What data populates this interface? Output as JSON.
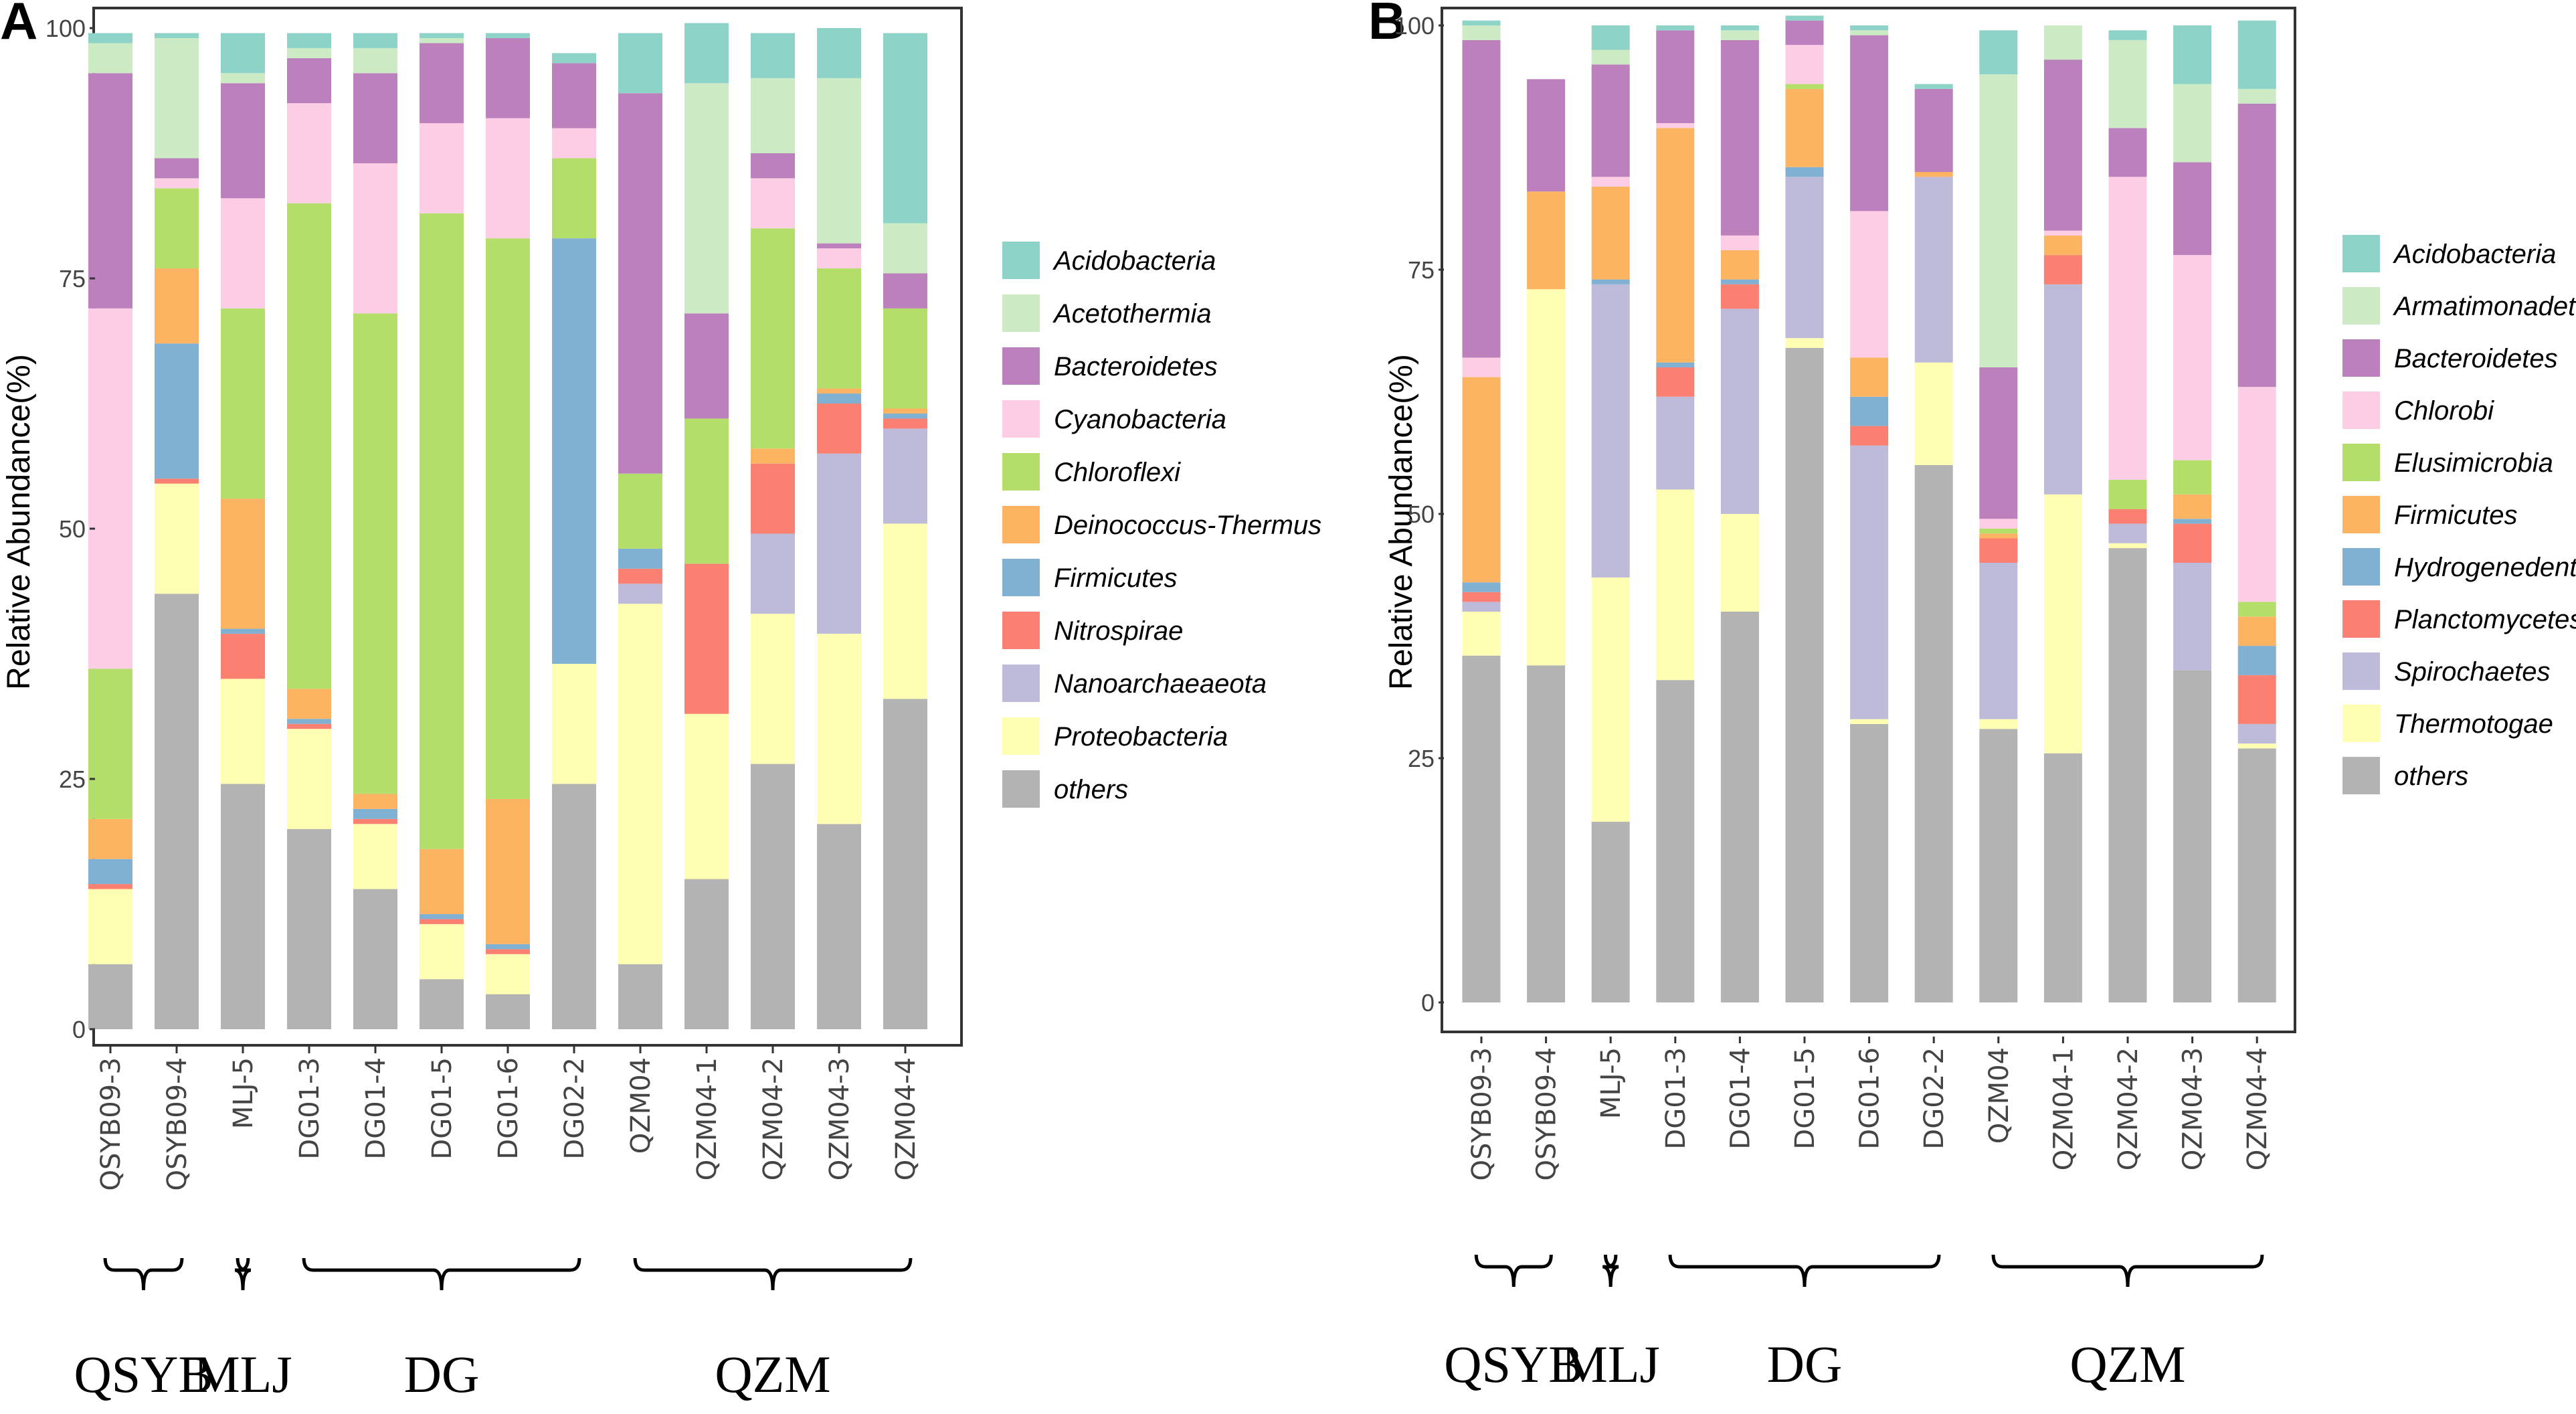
{
  "chart_data": [
    {
      "panel": "A",
      "type": "bar",
      "stacked": true,
      "ylabel": "Relative Abundance(%)",
      "ylim": [
        0,
        100
      ],
      "yticks": [
        0,
        25,
        50,
        75,
        100
      ],
      "categories": [
        "QSYB09-3",
        "QSYB09-4",
        "MLJ-5",
        "DG01-3",
        "DG01-4",
        "DG01-5",
        "DG01-6",
        "DG02-2",
        "QZM04",
        "QZM04-1",
        "QZM04-2",
        "QZM04-3",
        "QZM04-4"
      ],
      "groups": [
        {
          "label": "QSYB",
          "from": 0,
          "to": 1
        },
        {
          "label": "MLJ",
          "from": 2,
          "to": 2
        },
        {
          "label": "DG",
          "from": 3,
          "to": 7
        },
        {
          "label": "QZM",
          "from": 8,
          "to": 12
        }
      ],
      "legend": [
        "Acidobacteria",
        "Acetothermia",
        "Bacteroidetes",
        "Cyanobacteria",
        "Chloroflexi",
        "Deinococcus-Thermus",
        "Firmicutes",
        "Nitrospirae",
        "Nanoarchaeaeota",
        "Proteobacteria",
        "others"
      ],
      "series": [
        {
          "name": "others",
          "color": "#b3b3b3",
          "values": [
            6.5,
            43.5,
            24.5,
            20,
            14,
            5,
            3.5,
            24.5,
            6.5,
            15,
            26.5,
            20.5,
            33
          ]
        },
        {
          "name": "Proteobacteria",
          "color": "#ffffb3",
          "values": [
            7.5,
            11,
            10.5,
            10,
            6.5,
            5.5,
            4,
            12,
            36,
            16.5,
            15,
            19,
            17.5
          ]
        },
        {
          "name": "Nanoarchaeaeota",
          "color": "#bebada",
          "values": [
            0,
            0,
            0,
            0,
            0,
            0,
            0,
            0,
            2,
            0,
            8,
            18,
            9.5
          ]
        },
        {
          "name": "Nitrospirae",
          "color": "#fb8072",
          "values": [
            0.5,
            0.5,
            4.5,
            0.5,
            0.5,
            0.5,
            0.5,
            0,
            1.5,
            15,
            7,
            5,
            1
          ]
        },
        {
          "name": "Firmicutes",
          "color": "#80b1d3",
          "values": [
            2.5,
            13.5,
            0.5,
            0.5,
            1,
            0.5,
            0.5,
            42.5,
            2,
            0,
            0,
            1,
            0.5
          ]
        },
        {
          "name": "Deinococcus-Thermus",
          "color": "#fdb462",
          "values": [
            4,
            7.5,
            13,
            3,
            1.5,
            6.5,
            14.5,
            0,
            0,
            0,
            1.5,
            0.5,
            0.5
          ]
        },
        {
          "name": "Chloroflexi",
          "color": "#b3de69",
          "values": [
            15,
            8,
            19,
            48.5,
            48,
            63.5,
            56,
            8,
            7.5,
            14.5,
            22,
            12,
            10
          ]
        },
        {
          "name": "Cyanobacteria",
          "color": "#fccde5",
          "values": [
            36,
            1,
            11,
            10,
            15,
            9,
            12,
            3,
            0,
            0,
            5,
            2,
            0
          ]
        },
        {
          "name": "Bacteroidetes",
          "color": "#bc80bd",
          "values": [
            23.5,
            2,
            11.5,
            4.5,
            9,
            8,
            8,
            6.5,
            38,
            10.5,
            2.5,
            0.5,
            3.5
          ]
        },
        {
          "name": "Acetothermia",
          "color": "#ccebc5",
          "values": [
            3,
            12,
            1,
            1,
            2.5,
            0.5,
            0,
            0,
            0,
            23,
            7.5,
            16.5,
            5
          ]
        },
        {
          "name": "Acidobacteria",
          "color": "#8dd3c7",
          "values": [
            1,
            0.5,
            4,
            1.5,
            1.5,
            0.5,
            0.5,
            1,
            6,
            6,
            4.5,
            5,
            19
          ]
        }
      ]
    },
    {
      "panel": "B",
      "type": "bar",
      "stacked": true,
      "ylabel": "Relative Abundance(%)",
      "ylim": [
        0,
        100
      ],
      "yticks": [
        0,
        25,
        50,
        75,
        100
      ],
      "categories": [
        "QSYB09-3",
        "QSYB09-4",
        "MLJ-5",
        "DG01-3",
        "DG01-4",
        "DG01-5",
        "DG01-6",
        "DG02-2",
        "QZM04",
        "QZM04-1",
        "QZM04-2",
        "QZM04-3",
        "QZM04-4"
      ],
      "groups": [
        {
          "label": "QSYB",
          "from": 0,
          "to": 1
        },
        {
          "label": "MLJ",
          "from": 2,
          "to": 2
        },
        {
          "label": "DG",
          "from": 3,
          "to": 7
        },
        {
          "label": "QZM",
          "from": 8,
          "to": 12
        }
      ],
      "legend": [
        "Acidobacteria",
        "Armatimonadetes",
        "Bacteroidetes",
        "Chlorobi",
        "Elusimicrobia",
        "Firmicutes",
        "Hydrogenedentes",
        "Planctomycetes",
        "Spirochaetes",
        "Thermotogae",
        "others"
      ],
      "series": [
        {
          "name": "others",
          "color": "#b3b3b3",
          "values": [
            35.5,
            34.5,
            18.5,
            33,
            40,
            67,
            28.5,
            55,
            28,
            25.5,
            46.5,
            34,
            26
          ]
        },
        {
          "name": "Thermotogae",
          "color": "#ffffb3",
          "values": [
            4.5,
            38.5,
            25,
            19.5,
            10,
            1,
            0.5,
            10.5,
            1,
            26.5,
            0.5,
            0,
            0.5
          ]
        },
        {
          "name": "Spirochaetes",
          "color": "#bebada",
          "values": [
            1,
            0,
            30,
            9.5,
            21,
            16.5,
            28,
            19,
            16,
            21.5,
            2,
            11,
            2
          ]
        },
        {
          "name": "Planctomycetes",
          "color": "#fb8072",
          "values": [
            1,
            0,
            0,
            3,
            2.5,
            0,
            2,
            0,
            2.5,
            3,
            1.5,
            4,
            5
          ]
        },
        {
          "name": "Hydrogenedentes",
          "color": "#80b1d3",
          "values": [
            1,
            0,
            0.5,
            0.5,
            0.5,
            1,
            3,
            0,
            0,
            0,
            0,
            0.5,
            3
          ]
        },
        {
          "name": "Firmicutes",
          "color": "#fdb462",
          "values": [
            21,
            10,
            9.5,
            24,
            3,
            8,
            4,
            0.5,
            0.5,
            2,
            0,
            2.5,
            3
          ]
        },
        {
          "name": "Elusimicrobia",
          "color": "#b3de69",
          "values": [
            0,
            0,
            0,
            0,
            0,
            0.5,
            0,
            0,
            0.5,
            0,
            3,
            3.5,
            1.5
          ]
        },
        {
          "name": "Chlorobi",
          "color": "#fccde5",
          "values": [
            2,
            0,
            1,
            0.5,
            1.5,
            4,
            15,
            0,
            1,
            0.5,
            31,
            21,
            22
          ]
        },
        {
          "name": "Bacteroidetes",
          "color": "#bc80bd",
          "values": [
            32.5,
            11.5,
            11.5,
            9.5,
            20,
            2.5,
            18,
            8.5,
            15.5,
            17.5,
            5,
            9.5,
            29
          ]
        },
        {
          "name": "Armatimonadetes",
          "color": "#ccebc5",
          "values": [
            1.5,
            0,
            1.5,
            0,
            1,
            0,
            0.5,
            0,
            30,
            3.5,
            9,
            8,
            1.5
          ]
        },
        {
          "name": "Acidobacteria",
          "color": "#8dd3c7",
          "values": [
            0.5,
            0,
            2.5,
            0.5,
            0.5,
            0.5,
            0.5,
            0.5,
            4.5,
            0,
            1,
            6,
            7
          ]
        }
      ]
    }
  ]
}
